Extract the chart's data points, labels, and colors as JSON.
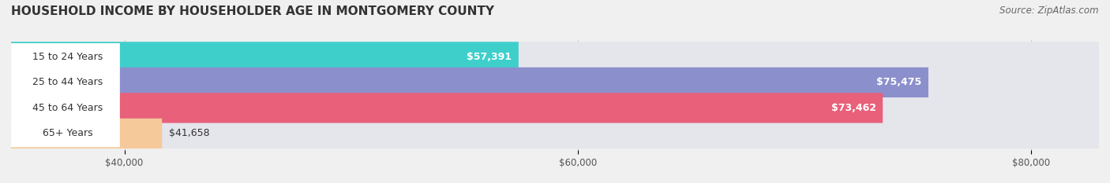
{
  "title": "HOUSEHOLD INCOME BY HOUSEHOLDER AGE IN MONTGOMERY COUNTY",
  "source": "Source: ZipAtlas.com",
  "categories": [
    "15 to 24 Years",
    "25 to 44 Years",
    "45 to 64 Years",
    "65+ Years"
  ],
  "values": [
    57391,
    75475,
    73462,
    41658
  ],
  "bar_colors": [
    "#3ecfcb",
    "#8b8fcc",
    "#e8607a",
    "#f5c99a"
  ],
  "bar_labels": [
    "$57,391",
    "$75,475",
    "$73,462",
    "$41,658"
  ],
  "xlim_min": 35000,
  "xlim_max": 83000,
  "x_ticks": [
    40000,
    60000,
    80000
  ],
  "x_tick_labels": [
    "$40,000",
    "$60,000",
    "$80,000"
  ],
  "background_color": "#f0f0f0",
  "bar_bg_color": "#e5e5ec",
  "title_fontsize": 11,
  "source_fontsize": 8.5,
  "label_bg_color": "#ffffff"
}
